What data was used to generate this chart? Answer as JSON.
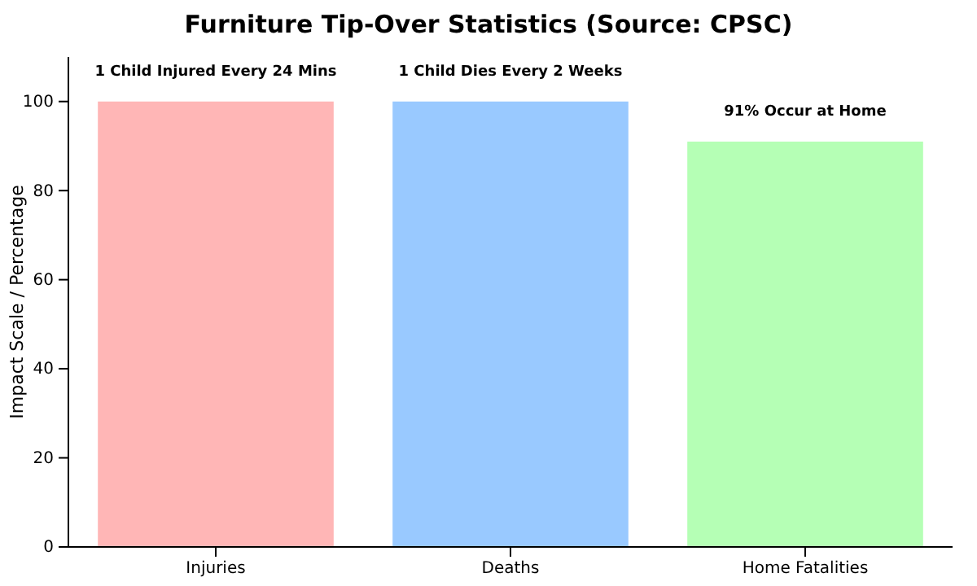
{
  "chart_data": {
    "type": "bar",
    "title": "Furniture Tip-Over Statistics (Source: CPSC)",
    "ylabel": "Impact Scale / Percentage",
    "categories": [
      "Injuries",
      "Deaths",
      "Home Fatalities"
    ],
    "values": [
      100,
      100,
      91
    ],
    "colors": [
      "#ffb6b6",
      "#99c9ff",
      "#b5ffb5"
    ],
    "ylim": [
      0,
      110
    ],
    "yticks": [
      0,
      20,
      40,
      60,
      80,
      100
    ],
    "grid": false,
    "annotations": [
      {
        "text": "1 Child Injured Every 24 Mins",
        "x": "Injuries",
        "y": 100
      },
      {
        "text": "1 Child Dies Every 2 Weeks",
        "x": "Deaths",
        "y": 100
      },
      {
        "text": "91% Occur at Home",
        "x": "Home Fatalities",
        "y": 91
      }
    ]
  }
}
